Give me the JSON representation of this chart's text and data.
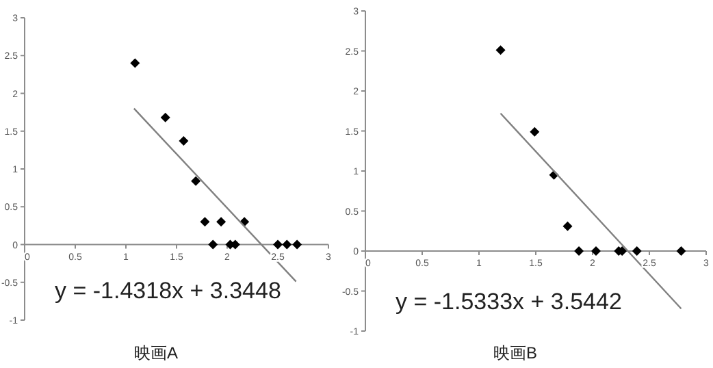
{
  "chart_data": [
    {
      "type": "scatter",
      "xlabel": "映画A",
      "annotations": [
        "y = -1.4318x + 3.3448"
      ],
      "xlim": [
        0,
        3
      ],
      "ylim": [
        -1,
        3
      ],
      "xticks": [
        0,
        0.5,
        1,
        1.5,
        2,
        2.5,
        3
      ],
      "yticks": [
        -1,
        -0.5,
        0,
        0.5,
        1,
        1.5,
        2,
        2.5,
        3
      ],
      "series": [
        {
          "type": "scatter",
          "marker": "diamond",
          "color": "#000000",
          "x": [
            1.09,
            1.39,
            1.57,
            1.69,
            1.78,
            1.86,
            1.94,
            2.03,
            2.08,
            2.17,
            2.5,
            2.59,
            2.69
          ],
          "values": [
            2.4,
            1.68,
            1.37,
            0.84,
            0.3,
            0,
            0.3,
            0,
            0,
            0.3,
            0,
            0,
            0
          ]
        },
        {
          "type": "line",
          "marker": "none",
          "color": "#808080",
          "x": [
            1.08,
            2.68
          ],
          "values": [
            1.8,
            -0.49
          ]
        }
      ]
    },
    {
      "type": "scatter",
      "xlabel": "映画B",
      "annotations": [
        "y = -1.5333x + 3.5442"
      ],
      "xlim": [
        0,
        3
      ],
      "ylim": [
        -1,
        3
      ],
      "xticks": [
        0,
        0.5,
        1,
        1.5,
        2,
        2.5,
        3
      ],
      "yticks": [
        -1,
        -0.5,
        0,
        0.5,
        1,
        1.5,
        2,
        2.5,
        3
      ],
      "series": [
        {
          "type": "scatter",
          "marker": "diamond",
          "color": "#000000",
          "x": [
            1.19,
            1.49,
            1.66,
            1.78,
            1.88,
            2.03,
            2.23,
            2.26,
            2.39,
            2.78
          ],
          "values": [
            2.51,
            1.49,
            0.95,
            0.31,
            0,
            0,
            0,
            0,
            0,
            0
          ]
        },
        {
          "type": "line",
          "marker": "none",
          "color": "#808080",
          "x": [
            1.19,
            2.78
          ],
          "values": [
            1.72,
            -0.72
          ]
        }
      ]
    }
  ]
}
